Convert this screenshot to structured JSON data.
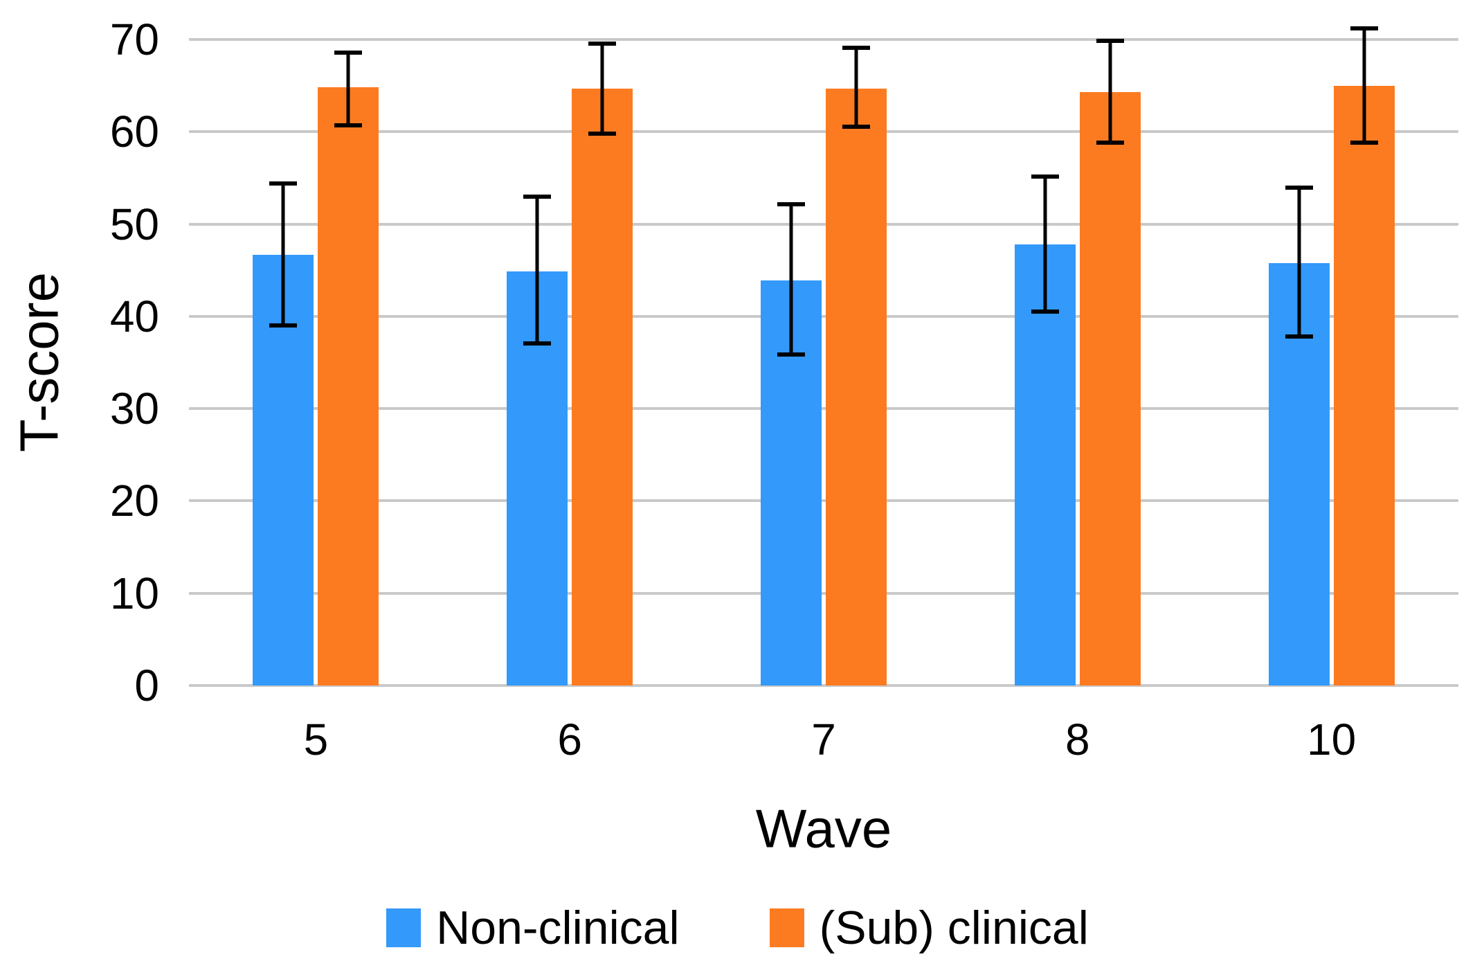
{
  "chart_data": {
    "type": "bar",
    "title": "",
    "xlabel": "Wave",
    "ylabel": "T-score",
    "categories": [
      "5",
      "6",
      "7",
      "8",
      "10"
    ],
    "yticks": [
      "0",
      "10",
      "20",
      "30",
      "40",
      "50",
      "60",
      "70"
    ],
    "ylim": [
      0,
      70
    ],
    "ytick_step": 10,
    "grid": true,
    "legend_position": "bottom",
    "colors": {
      "non_clinical": "#3399FB",
      "sub_clinical": "#FC7B21",
      "gridline": "#C9C9C9",
      "errorbar": "#000000",
      "text": "#000000",
      "background": "#FFFFFF"
    },
    "series": [
      {
        "name": "Non-clinical",
        "color": "#3399FB",
        "values": [
          46.7,
          44.9,
          43.9,
          47.8,
          45.8
        ],
        "error_low": [
          38.8,
          36.8,
          35.6,
          40.3,
          37.6
        ],
        "error_high": [
          54.6,
          53.2,
          52.4,
          55.4,
          54.2
        ]
      },
      {
        "name": "(Sub) clinical",
        "color": "#FC7B21",
        "values": [
          64.8,
          64.7,
          64.7,
          64.3,
          65.0
        ],
        "error_low": [
          60.5,
          59.6,
          60.3,
          58.6,
          58.6
        ],
        "error_high": [
          68.8,
          69.8,
          69.3,
          70.1,
          71.4
        ]
      }
    ]
  }
}
